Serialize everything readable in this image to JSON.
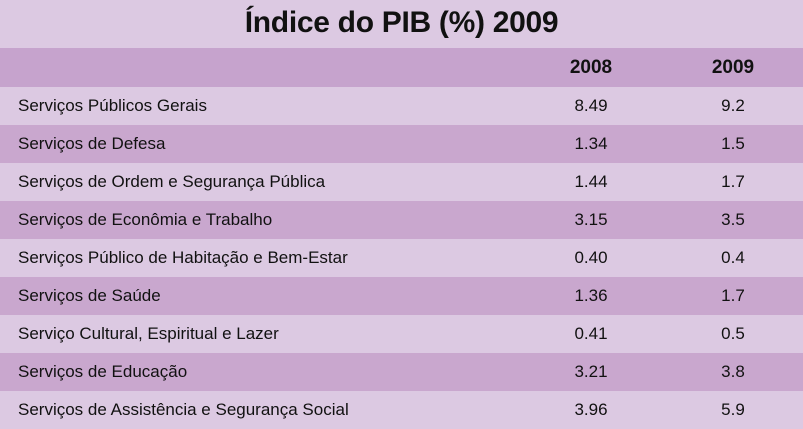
{
  "chart_data": {
    "type": "table",
    "title": "Índice do PIB (%) 2009",
    "columns": [
      "",
      "2008",
      "2009"
    ],
    "rows": [
      {
        "label": "Serviços Públicos Gerais",
        "v2008": "8.49",
        "v2009": "9.2"
      },
      {
        "label": "Serviços de Defesa",
        "v2008": "1.34",
        "v2009": "1.5"
      },
      {
        "label": "Serviços de Ordem e Segurança Pública",
        "v2008": "1.44",
        "v2009": "1.7"
      },
      {
        "label": "Serviços de Econômia e Trabalho",
        "v2008": "3.15",
        "v2009": "3.5"
      },
      {
        "label": "Serviços Público de Habitação e Bem-Estar",
        "v2008": "0.40",
        "v2009": "0.4"
      },
      {
        "label": "Serviços de Saúde",
        "v2008": "1.36",
        "v2009": "1.7"
      },
      {
        "label": "Serviço Cultural, Espiritual e Lazer",
        "v2008": "0.41",
        "v2009": "0.5"
      },
      {
        "label": "Serviços de Educação",
        "v2008": "3.21",
        "v2009": "3.8"
      },
      {
        "label": "Serviços de Assistência e Segurança Social",
        "v2008": "3.96",
        "v2009": "5.9"
      }
    ]
  },
  "colors": {
    "background": "#dcc9e2",
    "band_dark": "#c9a7ce",
    "header": "#c6a3cd"
  }
}
